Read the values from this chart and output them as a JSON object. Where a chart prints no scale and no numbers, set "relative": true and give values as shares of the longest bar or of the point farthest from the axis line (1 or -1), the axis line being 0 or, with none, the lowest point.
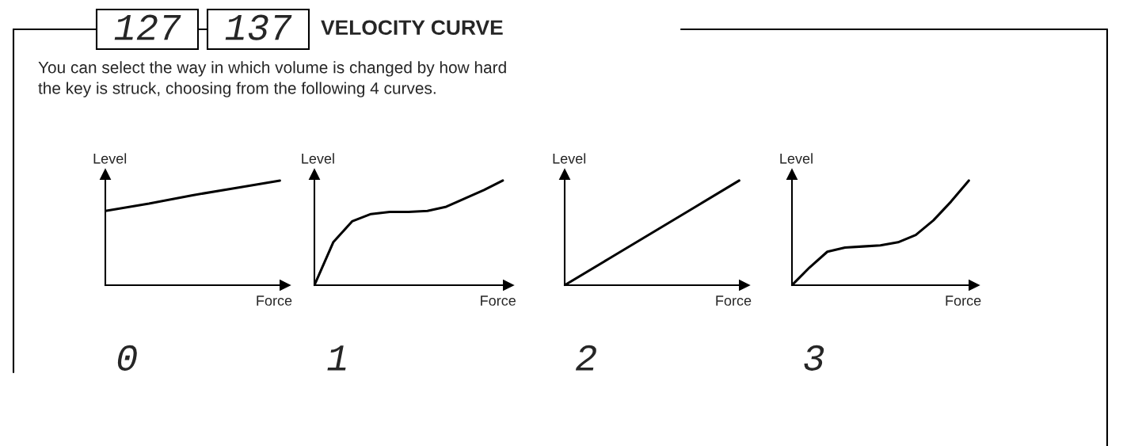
{
  "chart_data": [
    {
      "type": "other",
      "title": "VELOCITY CURVE",
      "subtitle": "You can select the way in which volume is changed by how hard\nthe key is struck, choosing from the following 4 curves.",
      "annotations": [
        "127",
        "137"
      ]
    },
    {
      "type": "line",
      "relative": true,
      "xlabel": "Force",
      "ylabel": "Level",
      "annotations": [
        "0"
      ],
      "categories": [
        null,
        null,
        null,
        null,
        null
      ],
      "series": [
        {
          "color": "#000000",
          "values": [
            0.71,
            0.78,
            0.86,
            0.93,
            1.0
          ]
        }
      ]
    },
    {
      "type": "line",
      "relative": true,
      "xlabel": "Force",
      "ylabel": "Level",
      "annotations": [
        "1"
      ],
      "categories": [
        null,
        null,
        null,
        null,
        null,
        null,
        null,
        null,
        null,
        null,
        null
      ],
      "series": [
        {
          "color": "#000000",
          "values": [
            0,
            0.41,
            0.61,
            0.68,
            0.7,
            0.7,
            0.71,
            0.75,
            0.83,
            0.91,
            1.0
          ]
        }
      ]
    },
    {
      "type": "line",
      "relative": true,
      "xlabel": "Force",
      "ylabel": "Level",
      "annotations": [
        "2"
      ],
      "categories": [
        null,
        null,
        null,
        null,
        null
      ],
      "series": [
        {
          "color": "#000000",
          "values": [
            0,
            0.25,
            0.5,
            0.75,
            1.0
          ]
        }
      ]
    },
    {
      "type": "line",
      "relative": true,
      "xlabel": "Force",
      "ylabel": "Level",
      "annotations": [
        "3"
      ],
      "categories": [
        null,
        null,
        null,
        null,
        null,
        null,
        null,
        null,
        null,
        null,
        null
      ],
      "series": [
        {
          "color": "#000000",
          "values": [
            0,
            0.17,
            0.32,
            0.36,
            0.37,
            0.38,
            0.41,
            0.48,
            0.62,
            0.8,
            1.0
          ]
        }
      ]
    }
  ]
}
